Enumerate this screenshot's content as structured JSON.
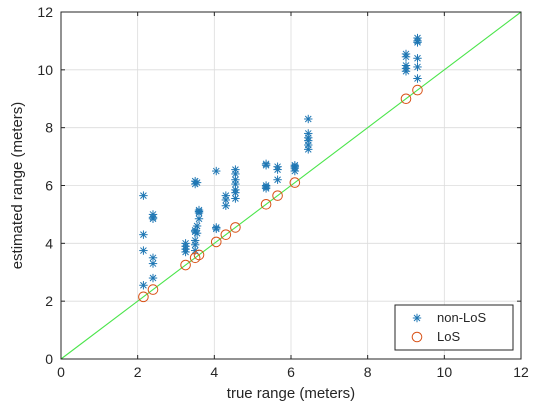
{
  "chart_data": {
    "type": "scatter",
    "title": "",
    "xlabel": "true range (meters)",
    "ylabel": "estimated range (meters)",
    "xlim": [
      0,
      12
    ],
    "ylim": [
      0,
      12
    ],
    "xticks": [
      0,
      2,
      4,
      6,
      8,
      10,
      12
    ],
    "yticks": [
      0,
      2,
      4,
      6,
      8,
      10,
      12
    ],
    "grid": true,
    "legend_position": "bottom-right",
    "reference_line": {
      "x": [
        0,
        12
      ],
      "y": [
        0,
        12
      ],
      "color": "#4be54b"
    },
    "series": [
      {
        "name": "non-LoS",
        "marker": "asterisk",
        "color": "#1f77b4",
        "points": [
          [
            2.15,
            5.65
          ],
          [
            2.15,
            4.3
          ],
          [
            2.15,
            3.75
          ],
          [
            2.15,
            2.55
          ],
          [
            2.4,
            5.0
          ],
          [
            2.4,
            4.9
          ],
          [
            2.4,
            4.85
          ],
          [
            2.4,
            3.5
          ],
          [
            2.4,
            3.3
          ],
          [
            2.4,
            2.8
          ],
          [
            3.25,
            4.0
          ],
          [
            3.25,
            3.9
          ],
          [
            3.25,
            3.8
          ],
          [
            3.25,
            3.7
          ],
          [
            3.5,
            6.15
          ],
          [
            3.5,
            6.05
          ],
          [
            3.5,
            4.45
          ],
          [
            3.5,
            4.4
          ],
          [
            3.5,
            4.1
          ],
          [
            3.5,
            3.95
          ],
          [
            3.5,
            3.75
          ],
          [
            3.55,
            6.1
          ],
          [
            3.6,
            5.15
          ],
          [
            3.6,
            5.1
          ],
          [
            3.6,
            5.05
          ],
          [
            3.6,
            4.85
          ],
          [
            3.55,
            4.6
          ],
          [
            3.55,
            4.35
          ],
          [
            4.05,
            6.5
          ],
          [
            4.05,
            4.55
          ],
          [
            4.05,
            4.5
          ],
          [
            4.3,
            5.65
          ],
          [
            4.3,
            5.5
          ],
          [
            4.3,
            5.3
          ],
          [
            4.55,
            6.55
          ],
          [
            4.55,
            6.4
          ],
          [
            4.55,
            6.2
          ],
          [
            4.55,
            6.05
          ],
          [
            4.55,
            5.85
          ],
          [
            4.55,
            5.75
          ],
          [
            4.55,
            5.55
          ],
          [
            5.35,
            6.75
          ],
          [
            5.35,
            6.7
          ],
          [
            5.35,
            6.0
          ],
          [
            5.35,
            5.95
          ],
          [
            5.35,
            5.9
          ],
          [
            5.65,
            6.65
          ],
          [
            5.65,
            6.55
          ],
          [
            5.65,
            6.2
          ],
          [
            6.1,
            6.7
          ],
          [
            6.1,
            6.65
          ],
          [
            6.1,
            6.6
          ],
          [
            6.1,
            6.5
          ],
          [
            6.45,
            8.3
          ],
          [
            6.45,
            7.8
          ],
          [
            6.45,
            7.65
          ],
          [
            6.45,
            7.55
          ],
          [
            6.45,
            7.4
          ],
          [
            6.45,
            7.25
          ],
          [
            9.0,
            10.55
          ],
          [
            9.0,
            10.45
          ],
          [
            9.0,
            10.15
          ],
          [
            9.0,
            10.05
          ],
          [
            9.0,
            9.95
          ],
          [
            9.3,
            11.1
          ],
          [
            9.3,
            11.0
          ],
          [
            9.3,
            10.95
          ],
          [
            9.3,
            10.4
          ],
          [
            9.3,
            10.1
          ],
          [
            9.3,
            9.7
          ]
        ]
      },
      {
        "name": "LoS",
        "marker": "circle",
        "color": "#d95319",
        "points": [
          [
            2.15,
            2.15
          ],
          [
            2.4,
            2.4
          ],
          [
            3.25,
            3.25
          ],
          [
            3.5,
            3.5
          ],
          [
            3.6,
            3.6
          ],
          [
            4.05,
            4.05
          ],
          [
            4.3,
            4.3
          ],
          [
            4.55,
            4.55
          ],
          [
            5.35,
            5.35
          ],
          [
            5.65,
            5.65
          ],
          [
            6.1,
            6.1
          ],
          [
            9.0,
            9.0
          ],
          [
            9.3,
            9.3
          ]
        ]
      }
    ]
  }
}
